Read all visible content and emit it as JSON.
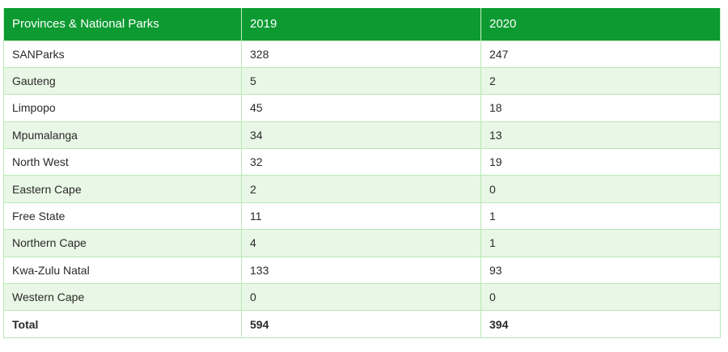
{
  "table": {
    "headers": [
      "Provinces & National Parks",
      "2019",
      "2020"
    ],
    "rows": [
      [
        "SANParks",
        "328",
        "247"
      ],
      [
        "Gauteng",
        "5",
        "2"
      ],
      [
        "Limpopo",
        "45",
        "18"
      ],
      [
        "Mpumalanga",
        "34",
        "13"
      ],
      [
        "North West",
        "32",
        "19"
      ],
      [
        "Eastern Cape",
        "2",
        "0"
      ],
      [
        "Free State",
        "11",
        "1"
      ],
      [
        "Northern Cape",
        "4",
        "1"
      ],
      [
        "Kwa-Zulu Natal",
        "133",
        "93"
      ],
      [
        "Western Cape",
        "0",
        "0"
      ]
    ],
    "total": [
      "Total",
      "594",
      "394"
    ]
  },
  "colors": {
    "header_bg": "#0c9a31",
    "header_text": "#ffffff",
    "stripe": "#e9f7e6",
    "border": "#b7e9b4"
  }
}
